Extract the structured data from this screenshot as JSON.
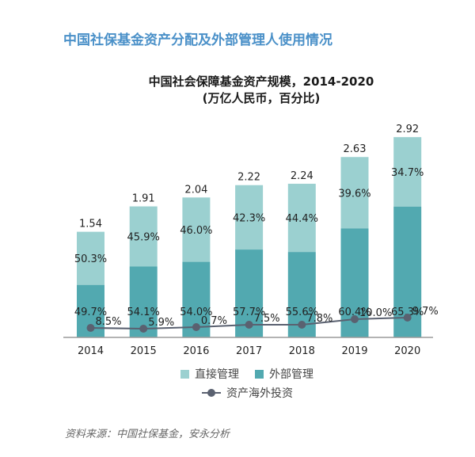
{
  "page_title": "中国社保基金资产分配及外部管理人使用情况",
  "source": "资料来源：中国社保基金，安永分析",
  "chart_data": {
    "type": "bar",
    "stacked": true,
    "title": "中国社会保障基金资产规模，2014-2020",
    "subtitle": "(万亿人民币，百分比)",
    "xlabel": "",
    "ylabel": "",
    "categories": [
      "2014",
      "2015",
      "2016",
      "2017",
      "2018",
      "2019",
      "2020"
    ],
    "totals": [
      1.54,
      1.91,
      2.04,
      2.22,
      2.24,
      2.63,
      2.92
    ],
    "total_labels": [
      "1.54",
      "1.91",
      "2.04",
      "2.22",
      "2.24",
      "2.63",
      "2.92"
    ],
    "series": [
      {
        "name": "外部管理",
        "color": "#52a9b0",
        "values_pct": [
          49.7,
          54.1,
          54.0,
          57.7,
          55.6,
          60.4,
          65.3
        ],
        "labels": [
          "49.7%",
          "54.1%",
          "54.0%",
          "57.7%",
          "55.6%",
          "60.4%",
          "65.3%"
        ]
      },
      {
        "name": "直接管理",
        "color": "#9bd0d0",
        "values_pct": [
          50.3,
          45.9,
          46.0,
          42.3,
          44.4,
          39.6,
          34.7
        ],
        "labels": [
          "50.3%",
          "45.9%",
          "46.0%",
          "42.3%",
          "44.4%",
          "39.6%",
          "34.7%"
        ]
      }
    ],
    "line_series": {
      "name": "资产海外投资",
      "color": "#5a6170",
      "values_pct": [
        8.5,
        5.9,
        0.7,
        7.5,
        7.8,
        10.0,
        9.7
      ],
      "labels": [
        "8.5%",
        "5.9%",
        "0.7%",
        "7.5%",
        "7.8%",
        "10.0%",
        "9.7%"
      ]
    },
    "ylim": [
      0,
      3.0
    ],
    "grid": false,
    "legend": "bottom",
    "legend_items": [
      "直接管理",
      "外部管理",
      "资产海外投资"
    ]
  }
}
